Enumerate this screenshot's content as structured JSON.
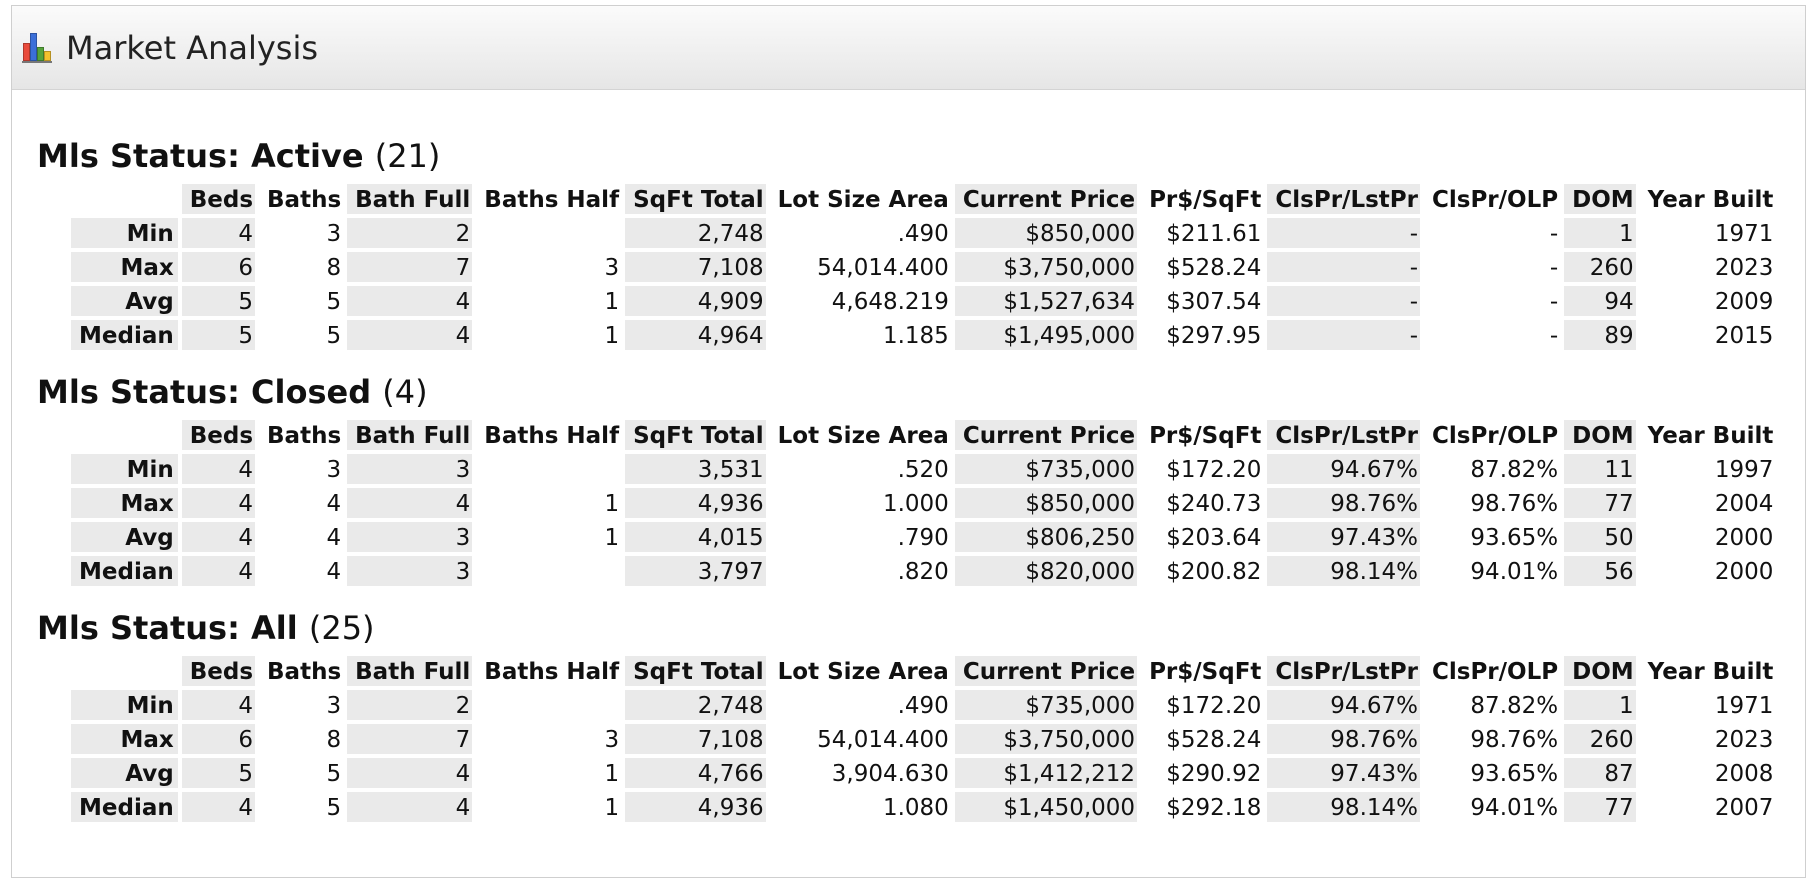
{
  "header": {
    "title": "Market Analysis",
    "icon": "bar-chart-icon",
    "icon_colors": [
      "#e94b3c",
      "#3b6fd8",
      "#55a33b",
      "#f2c12e"
    ]
  },
  "columns": [
    "Beds",
    "Baths",
    "Bath Full",
    "Baths Half",
    "SqFt Total",
    "Lot Size Area",
    "Current Price",
    "Pr$/SqFt",
    "ClsPr/LstPr",
    "ClsPr/OLP",
    "DOM",
    "Year Built"
  ],
  "sections": [
    {
      "label": "Mls Status: Active",
      "count": "(21)",
      "rows": [
        {
          "stat": "Min",
          "cells": [
            "4",
            "3",
            "2",
            "",
            "2,748",
            ".490",
            "$850,000",
            "$211.61",
            "-",
            "-",
            "1",
            "1971"
          ]
        },
        {
          "stat": "Max",
          "cells": [
            "6",
            "8",
            "7",
            "3",
            "7,108",
            "54,014.400",
            "$3,750,000",
            "$528.24",
            "-",
            "-",
            "260",
            "2023"
          ]
        },
        {
          "stat": "Avg",
          "cells": [
            "5",
            "5",
            "4",
            "1",
            "4,909",
            "4,648.219",
            "$1,527,634",
            "$307.54",
            "-",
            "-",
            "94",
            "2009"
          ]
        },
        {
          "stat": "Median",
          "cells": [
            "5",
            "5",
            "4",
            "1",
            "4,964",
            "1.185",
            "$1,495,000",
            "$297.95",
            "-",
            "-",
            "89",
            "2015"
          ]
        }
      ]
    },
    {
      "label": "Mls Status: Closed",
      "count": "(4)",
      "rows": [
        {
          "stat": "Min",
          "cells": [
            "4",
            "3",
            "3",
            "",
            "3,531",
            ".520",
            "$735,000",
            "$172.20",
            "94.67%",
            "87.82%",
            "11",
            "1997"
          ]
        },
        {
          "stat": "Max",
          "cells": [
            "4",
            "4",
            "4",
            "1",
            "4,936",
            "1.000",
            "$850,000",
            "$240.73",
            "98.76%",
            "98.76%",
            "77",
            "2004"
          ]
        },
        {
          "stat": "Avg",
          "cells": [
            "4",
            "4",
            "3",
            "1",
            "4,015",
            ".790",
            "$806,250",
            "$203.64",
            "97.43%",
            "93.65%",
            "50",
            "2000"
          ]
        },
        {
          "stat": "Median",
          "cells": [
            "4",
            "4",
            "3",
            "",
            "3,797",
            ".820",
            "$820,000",
            "$200.82",
            "98.14%",
            "94.01%",
            "56",
            "2000"
          ]
        }
      ]
    },
    {
      "label": "Mls Status: All",
      "count": "(25)",
      "rows": [
        {
          "stat": "Min",
          "cells": [
            "4",
            "3",
            "2",
            "",
            "2,748",
            ".490",
            "$735,000",
            "$172.20",
            "94.67%",
            "87.82%",
            "1",
            "1971"
          ]
        },
        {
          "stat": "Max",
          "cells": [
            "6",
            "8",
            "7",
            "3",
            "7,108",
            "54,014.400",
            "$3,750,000",
            "$528.24",
            "98.76%",
            "98.76%",
            "260",
            "2023"
          ]
        },
        {
          "stat": "Avg",
          "cells": [
            "5",
            "5",
            "4",
            "1",
            "4,766",
            "3,904.630",
            "$1,412,212",
            "$290.92",
            "97.43%",
            "93.65%",
            "87",
            "2008"
          ]
        },
        {
          "stat": "Median",
          "cells": [
            "4",
            "5",
            "4",
            "1",
            "4,936",
            "1.080",
            "$1,450,000",
            "$292.18",
            "98.14%",
            "94.01%",
            "77",
            "2007"
          ]
        }
      ]
    }
  ]
}
